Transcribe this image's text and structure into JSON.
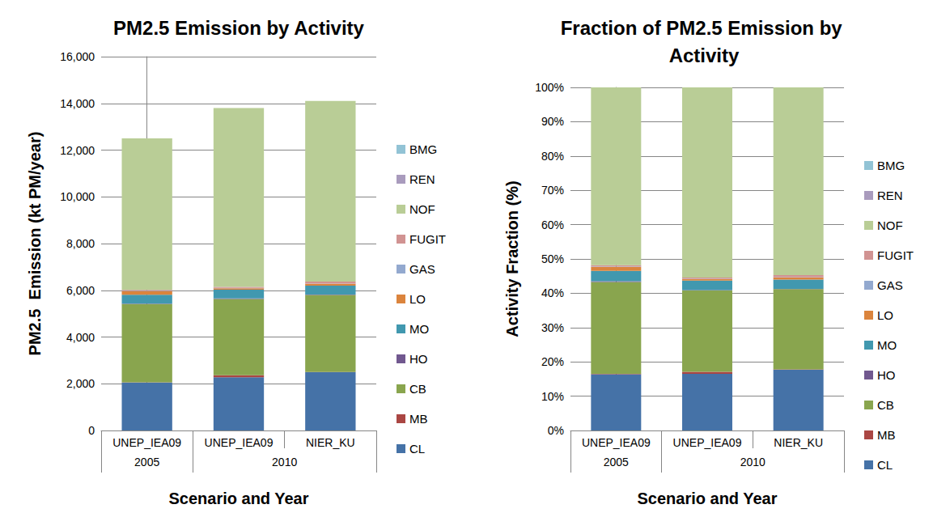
{
  "chart_data": [
    {
      "type": "bar",
      "stacked": true,
      "grid": true,
      "legend": "right",
      "title": "PM2.5 Emission by Activity",
      "x_label": "Scenario and Year",
      "y_label": "PM2.5  Emission (kt PM/year)",
      "categories": [
        "UNEP_IEA09",
        "UNEP_IEA09",
        "NIER_KU"
      ],
      "category_groups": [
        "2005",
        "2010",
        "2010"
      ],
      "ylim": [
        0,
        16000
      ],
      "yticks": [
        0,
        {
          "value": 2000,
          "label": "2,000"
        },
        {
          "value": 4000,
          "label": "4,000"
        },
        {
          "value": 6000,
          "label": "6,000"
        },
        {
          "value": 8000,
          "label": "8,000"
        },
        {
          "value": 10000,
          "label": "10,000"
        },
        {
          "value": 12000,
          "label": "12,000"
        },
        {
          "value": 14000,
          "label": "14,000"
        },
        {
          "value": 16000,
          "label": "16,000"
        }
      ],
      "series": [
        {
          "name": "CL",
          "color": "#4572a7",
          "values": [
            2050,
            2280,
            2490
          ]
        },
        {
          "name": "MB",
          "color": "#aa4643",
          "values": [
            10,
            80,
            10
          ]
        },
        {
          "name": "CB",
          "color": "#89a54e",
          "values": [
            3350,
            3270,
            3300
          ]
        },
        {
          "name": "HO",
          "color": "#71588f",
          "values": [
            20,
            20,
            20
          ]
        },
        {
          "name": "MO",
          "color": "#4198af",
          "values": [
            380,
            380,
            380
          ]
        },
        {
          "name": "LO",
          "color": "#db843d",
          "values": [
            150,
            60,
            80
          ]
        },
        {
          "name": "GAS",
          "color": "#93a9cf",
          "values": [
            10,
            10,
            10
          ]
        },
        {
          "name": "FUGIT",
          "color": "#d19392",
          "values": [
            50,
            50,
            80
          ]
        },
        {
          "name": "NOF",
          "color": "#b9cd96",
          "values": [
            6480,
            7650,
            7730
          ]
        },
        {
          "name": "REN",
          "color": "#a99bbd",
          "values": [
            0,
            0,
            0
          ]
        },
        {
          "name": "BMG",
          "color": "#92c3d5",
          "values": [
            0,
            0,
            0
          ]
        }
      ]
    },
    {
      "type": "bar",
      "stacked": true,
      "grid": true,
      "legend": "right",
      "title": "Fraction of PM2.5 Emission by Activity",
      "x_label": "Scenario and Year",
      "y_label": "Activity Fraction (%)",
      "categories": [
        "UNEP_IEA09",
        "UNEP_IEA09",
        "NIER_KU"
      ],
      "category_groups": [
        "2005",
        "2010",
        "2010"
      ],
      "ylim": [
        0,
        100
      ],
      "yticks": [
        {
          "value": 0,
          "label": "0%"
        },
        {
          "value": 10,
          "label": "10%"
        },
        {
          "value": 20,
          "label": "20%"
        },
        {
          "value": 30,
          "label": "30%"
        },
        {
          "value": 40,
          "label": "40%"
        },
        {
          "value": 50,
          "label": "50%"
        },
        {
          "value": 60,
          "label": "60%"
        },
        {
          "value": 70,
          "label": "70%"
        },
        {
          "value": 80,
          "label": "80%"
        },
        {
          "value": 90,
          "label": "90%"
        },
        {
          "value": 100,
          "label": "100%"
        }
      ],
      "series": [
        {
          "name": "CL",
          "color": "#4572a7",
          "values": [
            16.4,
            16.5,
            17.7
          ]
        },
        {
          "name": "MB",
          "color": "#aa4643",
          "values": [
            0.1,
            0.6,
            0.1
          ]
        },
        {
          "name": "CB",
          "color": "#89a54e",
          "values": [
            26.8,
            23.7,
            23.4
          ]
        },
        {
          "name": "HO",
          "color": "#71588f",
          "values": [
            0.2,
            0.1,
            0.1
          ]
        },
        {
          "name": "MO",
          "color": "#4198af",
          "values": [
            3.0,
            2.8,
            2.7
          ]
        },
        {
          "name": "LO",
          "color": "#db843d",
          "values": [
            1.2,
            0.4,
            0.6
          ]
        },
        {
          "name": "GAS",
          "color": "#93a9cf",
          "values": [
            0.1,
            0.1,
            0.1
          ]
        },
        {
          "name": "FUGIT",
          "color": "#d19392",
          "values": [
            0.4,
            0.4,
            0.6
          ]
        },
        {
          "name": "NOF",
          "color": "#b9cd96",
          "values": [
            51.8,
            55.4,
            54.7
          ]
        },
        {
          "name": "REN",
          "color": "#a99bbd",
          "values": [
            0,
            0,
            0
          ]
        },
        {
          "name": "BMG",
          "color": "#92c3d5",
          "values": [
            0,
            0,
            0
          ]
        }
      ]
    }
  ]
}
